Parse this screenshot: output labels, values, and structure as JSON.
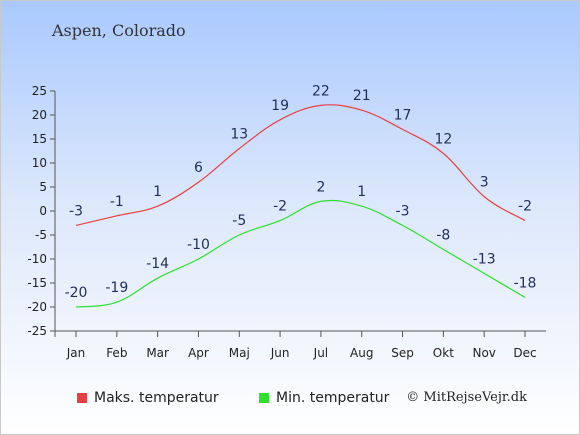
{
  "title": "Aspen, Colorado",
  "copyright": "© MitRejseVejr.dk",
  "colors": {
    "max_line": "#e84040",
    "min_line": "#2de02d",
    "grid": "#bbbbbb"
  },
  "chart_data": {
    "type": "line",
    "categories": [
      "Jan",
      "Feb",
      "Mar",
      "Apr",
      "Maj",
      "Jun",
      "Jul",
      "Aug",
      "Sep",
      "Okt",
      "Nov",
      "Dec"
    ],
    "series": [
      {
        "name": "Maks. temperatur",
        "values": [
          -3,
          -1,
          1,
          6,
          13,
          19,
          22,
          21,
          17,
          12,
          3,
          -2
        ]
      },
      {
        "name": "Min. temperatur",
        "values": [
          -20,
          -19,
          -14,
          -10,
          -5,
          -2,
          2,
          1,
          -3,
          -8,
          -13,
          -18
        ]
      }
    ],
    "ylim": [
      -25,
      25
    ],
    "yticks": [
      25,
      20,
      15,
      10,
      5,
      0,
      -5,
      -10,
      -15,
      -20,
      -25
    ],
    "grid": false,
    "legend": "bottom"
  }
}
